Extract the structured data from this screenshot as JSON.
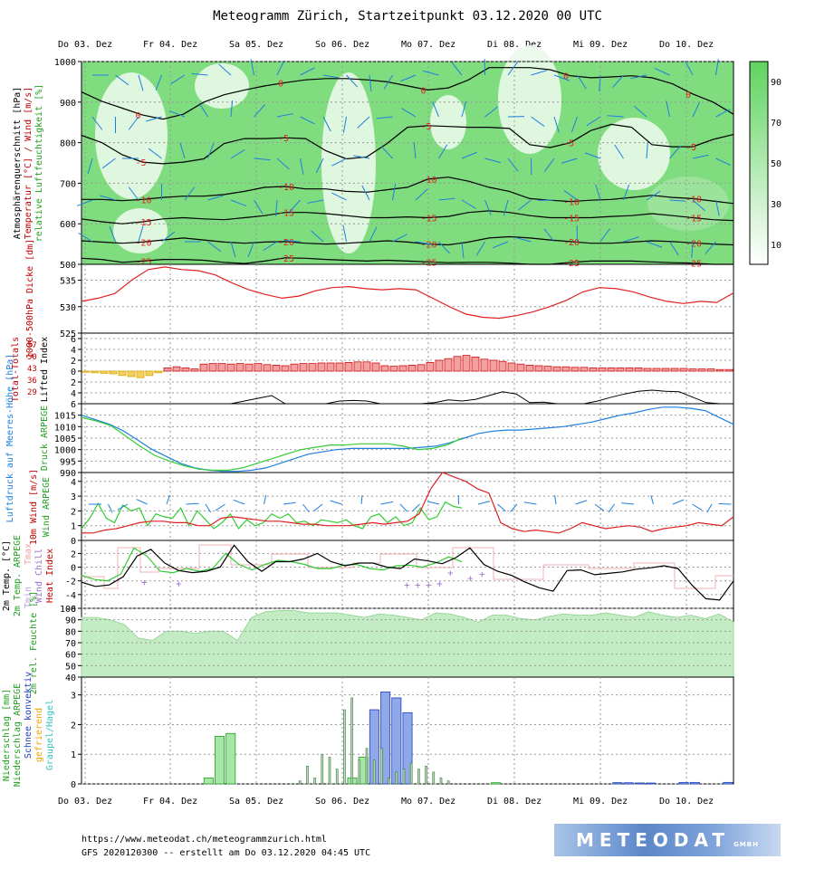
{
  "title": "Meteogramm Zürich, Startzeitpunkt 03.12.2020 00 UTC",
  "days": [
    "Do 03. Dez",
    "Fr 04. Dez",
    "Sa 05. Dez",
    "So 06. Dez",
    "Mo 07. Dez",
    "Di 08. Dez",
    "Mi 09. Dez",
    "Do 10. Dez"
  ],
  "footer": {
    "url": "https://www.meteodat.ch/meteogrammzurich.html",
    "info": "GFS 2020120300 -- erstellt am Do 03.12.2020 04:45 UTC"
  },
  "logo": {
    "text": "METEODAT",
    "suffix": "GMBH"
  },
  "colors": {
    "green": "#33cc33",
    "red": "#e02020",
    "blue": "#1f7fe0",
    "grid": "#999999",
    "fillGreen": "#c4ecc4"
  },
  "chart_data": [
    {
      "type": "heatmap",
      "name": "cross-section",
      "ylabels": [
        "Atmosphärenquerschnitt [hPa]",
        "Temperatur [°C] / Wind [m/s]",
        "relative Luftfeuchtigkeit [%]"
      ],
      "ylim": [
        1000,
        500
      ],
      "yticks": [
        500,
        600,
        700,
        800,
        900,
        1000
      ],
      "colorbar_ticks": [
        90,
        70,
        50,
        30,
        10
      ],
      "isotherms": [
        {
          "label": "-25",
          "p": [
            515,
            512,
            505,
            508,
            512,
            512,
            510,
            505,
            502,
            508,
            516,
            515,
            512,
            510,
            508,
            510,
            508,
            506,
            504,
            505,
            505,
            503,
            500,
            500,
            505,
            508,
            508,
            508,
            506,
            504,
            503,
            500,
            500
          ]
        },
        {
          "label": "-20",
          "p": [
            558,
            555,
            552,
            555,
            560,
            565,
            560,
            555,
            552,
            555,
            556,
            552,
            550,
            552,
            555,
            558,
            555,
            550,
            548,
            555,
            565,
            568,
            565,
            560,
            556,
            552,
            552,
            555,
            558,
            556,
            553,
            550,
            548
          ]
        },
        {
          "label": "-15",
          "p": [
            612,
            605,
            600,
            605,
            612,
            615,
            612,
            610,
            615,
            620,
            628,
            628,
            625,
            620,
            615,
            615,
            617,
            615,
            618,
            628,
            632,
            628,
            620,
            615,
            615,
            615,
            618,
            620,
            625,
            620,
            615,
            610,
            608
          ]
        },
        {
          "label": "-10",
          "p": [
            660,
            660,
            657,
            660,
            665,
            668,
            668,
            672,
            680,
            690,
            692,
            686,
            686,
            680,
            678,
            684,
            690,
            710,
            715,
            705,
            690,
            680,
            662,
            658,
            655,
            658,
            660,
            665,
            670,
            665,
            662,
            656,
            650
          ]
        },
        {
          "label": "-5",
          "p": [
            818,
            800,
            770,
            752,
            748,
            752,
            760,
            798,
            810,
            810,
            812,
            810,
            780,
            760,
            765,
            798,
            838,
            842,
            840,
            838,
            838,
            835,
            795,
            788,
            800,
            830,
            845,
            838,
            795,
            790,
            790,
            808,
            820
          ]
        },
        {
          "label": "0",
          "p": [
            925,
            902,
            885,
            868,
            858,
            870,
            900,
            918,
            930,
            940,
            948,
            955,
            958,
            958,
            955,
            950,
            940,
            930,
            935,
            955,
            985,
            985,
            985,
            980,
            965,
            960,
            962,
            965,
            960,
            945,
            920,
            900,
            870
          ]
        }
      ]
    },
    {
      "type": "line",
      "name": "thickness",
      "ylabel": "1000-500hPa Dicke [dm]",
      "ylim": [
        525,
        538
      ],
      "yticks": [
        525,
        530,
        535
      ],
      "series": [
        {
          "name": "",
          "values": [
            531,
            531.6,
            532.5,
            535,
            537,
            537.5,
            537,
            536.8,
            536,
            534.5,
            533.2,
            532.3,
            531.6,
            532,
            533,
            533.6,
            533.8,
            533.4,
            533.2,
            533.4,
            533.2,
            531.6,
            530,
            528.6,
            528,
            527.8,
            528.3,
            529,
            530,
            531.2,
            532.8,
            533.6,
            533.4,
            532.8,
            531.8,
            531,
            530.6,
            531,
            530.8,
            532.6
          ]
        }
      ]
    },
    {
      "type": "bar",
      "name": "lifted-index",
      "ylabel": "Lifted Index",
      "ylabel2": "Total-Totals",
      "tt_ticks": [
        "57",
        "50",
        "43",
        "36",
        "29"
      ],
      "ylim": [
        6,
        -7
      ],
      "yticks": [
        -6,
        -4,
        -2,
        0,
        2,
        4,
        6
      ],
      "li": [
        0.2,
        0.3,
        0.4,
        0.5,
        0.8,
        1,
        1.2,
        0.8,
        0.3,
        -0.6,
        -0.8,
        -0.6,
        -0.4,
        -1.3,
        -1.4,
        -1.4,
        -1.3,
        -1.4,
        -1.3,
        -1.4,
        -1.2,
        -1.1,
        -1.0,
        -1.3,
        -1.4,
        -1.4,
        -1.5,
        -1.5,
        -1.5,
        -1.6,
        -1.7,
        -1.7,
        -1.5,
        -1.0,
        -0.9,
        -1.0,
        -1.1,
        -1.2,
        -1.6,
        -2.0,
        -2.3,
        -2.7,
        -2.9,
        -2.6,
        -2.2,
        -2.0,
        -1.8,
        -1.5,
        -1.3,
        -1.1,
        -1.0,
        -0.9,
        -0.8,
        -0.8,
        -0.7,
        -0.7,
        -0.6,
        -0.6,
        -0.6,
        -0.6,
        -0.6,
        -0.6,
        -0.5,
        -0.5,
        -0.5,
        -0.5,
        -0.5,
        -0.4,
        -0.4,
        -0.4,
        -0.3,
        -0.3
      ],
      "tt": [
        6,
        6,
        6,
        6,
        6,
        6,
        6,
        6,
        6,
        6,
        6,
        6,
        5.5,
        5,
        4.5,
        6,
        6,
        6,
        6,
        5.5,
        5.4,
        5.5,
        6,
        6,
        6,
        6,
        5.8,
        5.3,
        5.5,
        5.2,
        4.5,
        3.8,
        4.2,
        5.8,
        5.7,
        6,
        6,
        6,
        5.5,
        4.8,
        4.2,
        3.7,
        3.5,
        3.7,
        3.8,
        4.8,
        5.8,
        6,
        6
      ]
    },
    {
      "type": "line",
      "name": "pressure",
      "ylabels": [
        "Luftdruck auf Meeres-Höhe [hPa]",
        "Druck ARPEGE"
      ],
      "ylim": [
        990,
        1020
      ],
      "yticks": [
        990,
        995,
        1000,
        1005,
        1010,
        1015
      ],
      "series": [
        {
          "name": "",
          "color": "#1f7fe0",
          "values": [
            1015,
            1013,
            1011,
            1008,
            1004,
            1000,
            997,
            994,
            992,
            991,
            990.5,
            990.5,
            991,
            992,
            994,
            996,
            998,
            999,
            1000,
            1000.5,
            1000.5,
            1000.5,
            1000.5,
            1000.5,
            1001,
            1001.5,
            1003,
            1005,
            1007,
            1008,
            1008.5,
            1008.5,
            1009,
            1009.5,
            1010,
            1011,
            1012,
            1013.5,
            1015,
            1016,
            1017.5,
            1018.5,
            1018.5,
            1018,
            1017,
            1014,
            1011
          ]
        },
        {
          "name": "",
          "color": "#33cc33",
          "values": [
            1014,
            1012.5,
            1010.5,
            1006,
            1001.5,
            997.5,
            995,
            993,
            991.5,
            991,
            991,
            992,
            994,
            996,
            998,
            1000,
            1001,
            1002,
            1002,
            1002.5,
            1002.5,
            1002.5,
            1001.5,
            1000,
            1000.5,
            1002,
            1005
          ]
        }
      ]
    },
    {
      "type": "line",
      "name": "wind",
      "ylabels": [
        "10m Wind [m/s]",
        "Wind ARPEGE"
      ],
      "ylim": [
        0,
        4.6
      ],
      "yticks": [
        0,
        1,
        2,
        3,
        4
      ],
      "series": [
        {
          "name": "",
          "color": "#e02020",
          "values": [
            0.5,
            0.5,
            0.7,
            0.8,
            1,
            1.2,
            1.3,
            1.3,
            1.2,
            1.2,
            1.0,
            1.0,
            1.5,
            1.6,
            1.5,
            1.4,
            1.3,
            1.3,
            1.2,
            1.1,
            1.1,
            1.0,
            1.0,
            1.0,
            1.1,
            1.2,
            1.1,
            1.2,
            1.3,
            1.8,
            3.5,
            4.6,
            4.3,
            4.0,
            3.5,
            3.2,
            1.2,
            0.8,
            0.6,
            0.7,
            0.6,
            0.5,
            0.8,
            1.2,
            1.0,
            0.8,
            0.9,
            1.0,
            0.9,
            0.6,
            0.8,
            0.9,
            1.0,
            1.2,
            1.1,
            1.0,
            1.6
          ]
        },
        {
          "name": "",
          "color": "#33cc33",
          "values": [
            0.8,
            1.5,
            2.5,
            1.5,
            1.2,
            2.4,
            2.0,
            2.2,
            1.0,
            1.8,
            1.6,
            1.5,
            2.2,
            1.0,
            2.0,
            1.4,
            0.8,
            1.2,
            1.8,
            0.8,
            1.4,
            1.0,
            1.2,
            1.8,
            1.5,
            1.8,
            1.2,
            1.3,
            1.0,
            1.4,
            1.3,
            1.2,
            1.4,
            1.0,
            0.8,
            1.6,
            1.8,
            1.2,
            1.6,
            1.0,
            1.2,
            2.2,
            1.4,
            1.6,
            2.6,
            2.3,
            2.2
          ]
        }
      ]
    },
    {
      "type": "line",
      "name": "temperature",
      "ylabels": [
        "2m Temp. [°C]",
        "2m Temp. ARPEGE",
        "Tmin",
        "Tmax",
        "Wind Chill",
        "Heat Index"
      ],
      "ylim": [
        -6,
        3.9
      ],
      "yticks": [
        -6,
        -4,
        -2,
        0,
        2
      ],
      "series": [
        {
          "name": "",
          "color": "#000000",
          "values": [
            -2.2,
            -2.8,
            -2.6,
            -1.4,
            1.6,
            2.6,
            0.6,
            -0.5,
            -0.8,
            -0.6,
            0.0,
            3.2,
            0.8,
            -0.6,
            0.8,
            0.8,
            1.2,
            2.0,
            0.8,
            0.2,
            0.6,
            0.6,
            0.0,
            -0.2,
            1.2,
            0.9,
            0.5,
            1.4,
            2.8,
            0.4,
            -0.6,
            -1.2,
            -2.2,
            -3.0,
            -3.5,
            -0.5,
            -0.4,
            -1.1,
            -0.9,
            -0.7,
            -0.3,
            -0.1,
            0.2,
            -0.2,
            -2.6,
            -4.6,
            -4.8,
            -2.0
          ]
        },
        {
          "name": "",
          "color": "#33cc33",
          "values": [
            -1.2,
            -1.8,
            -2.0,
            -1.0,
            2.8,
            1.6,
            -0.6,
            -0.8,
            -0.2,
            -0.6,
            -0.2,
            2.0,
            0.4,
            -0.4,
            0.4,
            1.0,
            0.8,
            0.4,
            -0.2,
            -0.2,
            0.3,
            0.4,
            -0.2,
            -0.4,
            0.2,
            0.3,
            0.0,
            0.6,
            1.5,
            0.8
          ]
        }
      ],
      "plus_marks": [
        [
          -2.2
        ],
        [
          -2.4
        ],
        [
          -2.6
        ],
        [
          -2.6
        ],
        [
          -2.6
        ],
        [
          -2.4
        ],
        [
          -0.8
        ],
        [
          -1.6
        ],
        [
          -1.0
        ]
      ]
    },
    {
      "type": "area",
      "name": "humidity",
      "ylabels": [
        "2m rel. Feuchte [%]"
      ],
      "ylim": [
        40,
        100
      ],
      "yticks": [
        40,
        50,
        60,
        70,
        80,
        90,
        100
      ],
      "series": [
        {
          "name": "",
          "values": [
            92,
            92,
            90,
            86,
            74,
            72,
            80,
            80,
            78,
            80,
            80,
            72,
            92,
            97,
            98,
            98,
            96,
            96,
            96,
            94,
            92,
            95,
            94,
            92,
            90,
            96,
            95,
            92,
            88,
            94,
            94,
            91,
            90,
            93,
            95,
            94,
            94,
            96,
            94,
            92,
            97,
            94,
            92,
            94,
            91,
            95,
            88
          ]
        }
      ]
    },
    {
      "type": "bar",
      "name": "precipitation",
      "ylabels": [
        "Niederschlag [mm]",
        "Niederschlag ARPEGE",
        "Schnee konvektiv",
        "gefrierend",
        "Graupel/Hagel"
      ],
      "ylim": [
        0,
        3.6
      ],
      "yticks": [
        0,
        1,
        2,
        3
      ],
      "gfs_total": [
        0,
        0,
        0,
        0,
        0,
        0,
        0,
        0,
        0,
        0,
        0,
        0.2,
        1.6,
        1.7,
        0,
        0,
        0,
        0,
        0,
        0,
        0,
        0,
        0,
        0,
        0.2,
        0.9,
        0,
        0,
        0,
        0,
        0,
        0,
        0,
        0,
        0,
        0,
        0,
        0.04,
        0,
        0,
        0,
        0,
        0,
        0,
        0,
        0,
        0,
        0,
        0.04,
        0,
        0.03,
        0,
        0,
        0,
        0,
        0.04,
        0,
        0,
        0.05
      ],
      "gfs_snow": [
        0,
        0,
        0,
        0,
        0,
        0,
        0,
        0,
        0,
        0,
        0,
        0,
        0,
        0,
        0,
        0,
        0,
        0,
        0,
        0,
        0,
        0,
        0,
        0,
        0,
        0,
        2.5,
        3.1,
        2.9,
        2.4,
        0,
        0,
        0,
        0,
        0,
        0,
        0,
        0,
        0,
        0,
        0,
        0,
        0,
        0,
        0,
        0,
        0,
        0,
        0.04,
        0.04,
        0.03,
        0.03,
        0,
        0,
        0.05,
        0.05,
        0,
        0,
        0.05
      ],
      "arpege": [
        0,
        0,
        0,
        0,
        0,
        0,
        0,
        0,
        0,
        0,
        0,
        0.1,
        0.6,
        0.2,
        1.0,
        0.9,
        0.5,
        2.5,
        2.9,
        0.8,
        1.2,
        0.8,
        1.2,
        0.2,
        0.4,
        0.5,
        0.7,
        0.5,
        0.6,
        0.4,
        0.2,
        0.1
      ]
    }
  ]
}
